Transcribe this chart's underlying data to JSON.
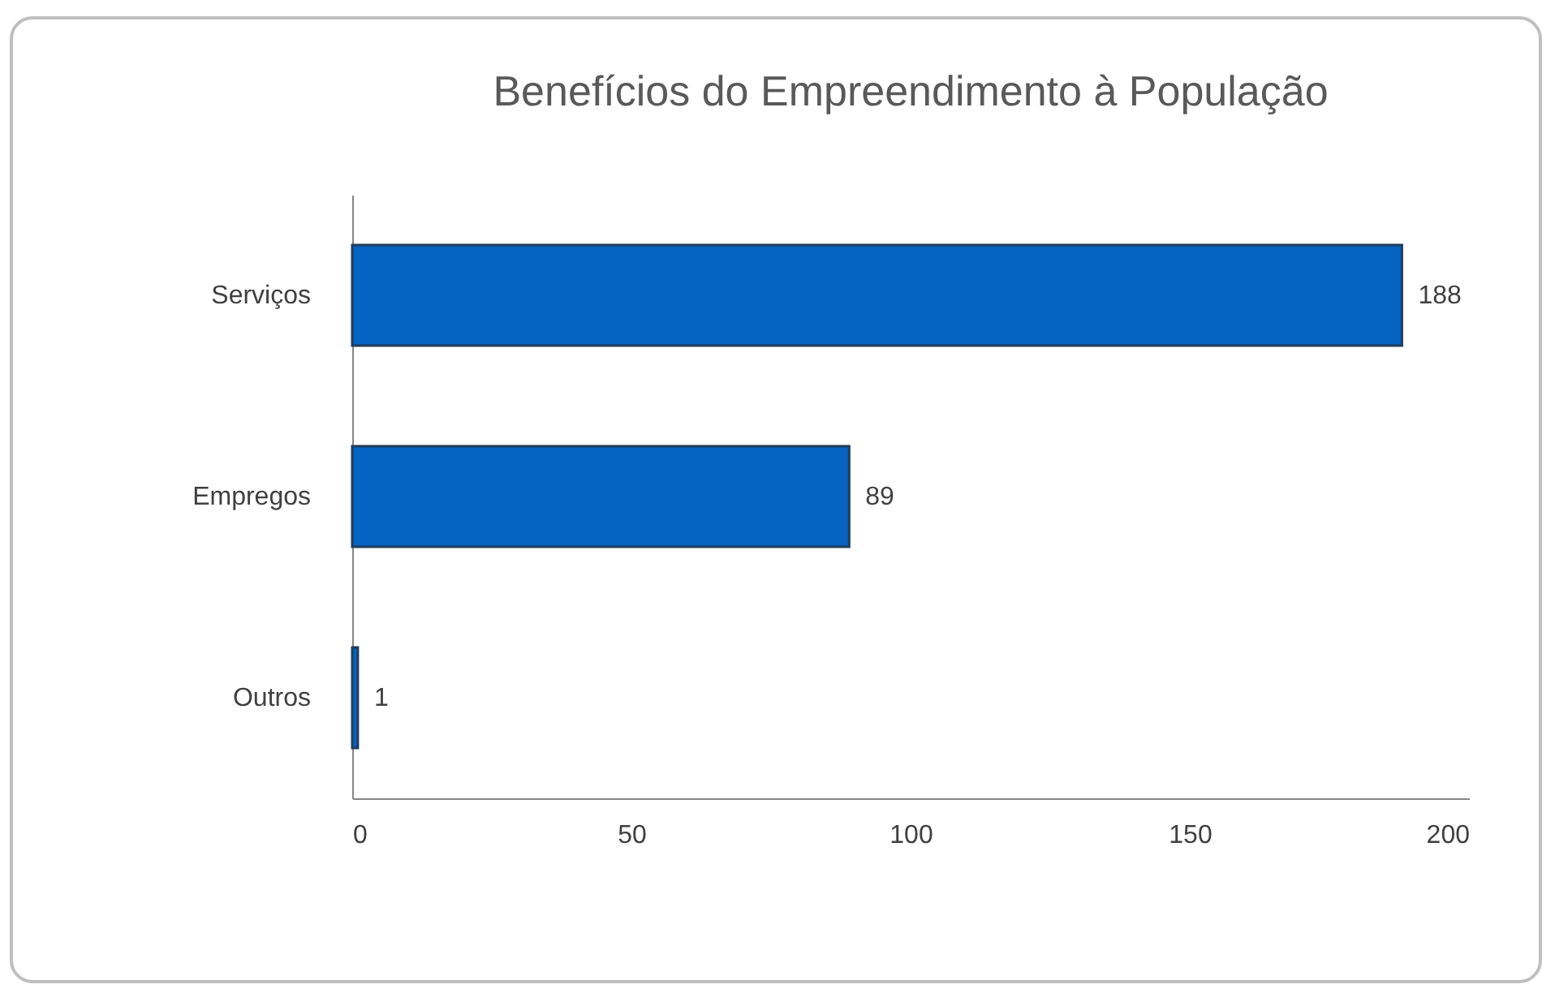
{
  "chart_data": {
    "type": "bar",
    "orientation": "horizontal",
    "title": "Benefícios do Empreendimento à População",
    "categories": [
      "Serviços",
      "Empregos",
      "Outros"
    ],
    "values": [
      188,
      89,
      1
    ],
    "color": "#0563c1",
    "xlim": [
      0,
      200
    ],
    "xticks": [
      0,
      50,
      100,
      150,
      200
    ],
    "grid": false,
    "data_labels": true
  }
}
